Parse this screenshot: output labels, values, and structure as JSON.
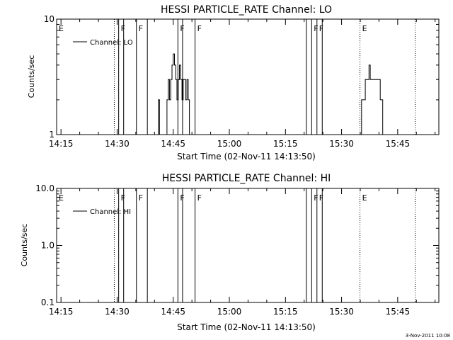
{
  "colors": {
    "foreground": "#000000",
    "background": "#ffffff"
  },
  "footer": {
    "timestamp": "3-Nov-2011 10:08"
  },
  "chart_data": [
    {
      "type": "line",
      "title": "HESSI PARTICLE_RATE Channel: LO",
      "xlabel": "Start Time (02-Nov-11 14:13:50)",
      "ylabel": "Counts/sec",
      "yscale": "log",
      "xlim": [
        "14:13:50",
        "15:56:00"
      ],
      "ylim": [
        1,
        10
      ],
      "xticks": [
        "14:15",
        "14:30",
        "14:45",
        "15:00",
        "15:15",
        "15:30",
        "15:45"
      ],
      "yticks": [
        "1",
        "10"
      ],
      "legend": {
        "label": "Channel: LO",
        "placement": "top-left"
      },
      "series": [
        {
          "name": "Channel: LO",
          "x": [
            "14:40:40",
            "14:41:00",
            "14:41:20",
            "14:41:40",
            "14:42:00",
            "14:42:30",
            "14:43:00",
            "14:43:20",
            "14:43:40",
            "14:44:00",
            "14:44:20",
            "14:44:40",
            "14:45:00",
            "14:45:20",
            "14:45:40",
            "14:46:00",
            "14:46:20",
            "14:46:40",
            "14:47:00",
            "14:47:20",
            "14:47:40",
            "14:48:00",
            "14:48:20",
            "14:48:40",
            "14:49:00",
            "14:49:20",
            "14:49:40",
            "14:50:00",
            "14:50:20",
            "15:35:10",
            "15:35:20",
            "15:35:40",
            "15:36:00",
            "15:36:20",
            "15:36:40",
            "15:37:00",
            "15:37:20",
            "15:37:40",
            "15:38:00",
            "15:38:20",
            "15:38:40",
            "15:39:00",
            "15:39:20",
            "15:39:40",
            "15:40:00",
            "15:40:20",
            "15:40:40",
            "15:41:00",
            "15:41:20"
          ],
          "y": [
            1,
            2,
            1,
            1,
            1,
            1,
            1,
            2,
            3,
            2,
            3,
            4,
            5,
            4,
            3,
            2,
            3,
            4,
            3,
            2,
            3,
            3,
            2,
            3,
            2,
            1,
            1,
            1,
            1,
            1,
            2,
            2,
            2,
            3,
            3,
            3,
            4,
            3,
            3,
            3,
            3,
            3,
            3,
            3,
            3,
            2,
            2,
            1,
            1
          ]
        }
      ],
      "annotations": [
        {
          "label": "E",
          "time": "14:13:50",
          "style": "dotted"
        },
        {
          "label": "",
          "time": "14:29:15",
          "style": "dotted"
        },
        {
          "label": "F",
          "time": "14:30:25",
          "style": "solid"
        },
        {
          "label": "",
          "time": "14:31:45",
          "style": "solid"
        },
        {
          "label": "F",
          "time": "14:35:10",
          "style": "solid"
        },
        {
          "label": "",
          "time": "14:38:05",
          "style": "solid"
        },
        {
          "label": "F",
          "time": "14:46:15",
          "style": "solid"
        },
        {
          "label": "",
          "time": "14:47:30",
          "style": "solid"
        },
        {
          "label": "F",
          "time": "14:50:50",
          "style": "solid"
        },
        {
          "label": "",
          "time": "15:20:35",
          "style": "solid"
        },
        {
          "label": "F",
          "time": "15:22:00",
          "style": "solid"
        },
        {
          "label": "F",
          "time": "15:23:25",
          "style": "solid"
        },
        {
          "label": "",
          "time": "15:24:50",
          "style": "solid"
        },
        {
          "label": "E",
          "time": "15:34:55",
          "style": "dotted"
        },
        {
          "label": "",
          "time": "15:49:40",
          "style": "dotted"
        }
      ]
    },
    {
      "type": "line",
      "title": "HESSI PARTICLE_RATE Channel: HI",
      "xlabel": "Start Time (02-Nov-11 14:13:50)",
      "ylabel": "Counts/sec",
      "yscale": "log",
      "xlim": [
        "14:13:50",
        "15:56:00"
      ],
      "ylim": [
        0.1,
        10
      ],
      "xticks": [
        "14:15",
        "14:30",
        "14:45",
        "15:00",
        "15:15",
        "15:30",
        "15:45"
      ],
      "yticks": [
        "0.1",
        "1.0",
        "10.0"
      ],
      "legend": {
        "label": "Channel: HI",
        "placement": "top-left"
      },
      "series": [
        {
          "name": "Channel: HI",
          "x": [],
          "y": []
        }
      ],
      "annotations": [
        {
          "label": "E",
          "time": "14:13:50",
          "style": "dotted"
        },
        {
          "label": "",
          "time": "14:29:15",
          "style": "dotted"
        },
        {
          "label": "F",
          "time": "14:30:25",
          "style": "solid"
        },
        {
          "label": "",
          "time": "14:31:45",
          "style": "solid"
        },
        {
          "label": "F",
          "time": "14:35:10",
          "style": "solid"
        },
        {
          "label": "",
          "time": "14:38:05",
          "style": "solid"
        },
        {
          "label": "F",
          "time": "14:46:15",
          "style": "solid"
        },
        {
          "label": "",
          "time": "14:47:30",
          "style": "solid"
        },
        {
          "label": "F",
          "time": "14:50:50",
          "style": "solid"
        },
        {
          "label": "",
          "time": "15:20:35",
          "style": "solid"
        },
        {
          "label": "F",
          "time": "15:22:00",
          "style": "solid"
        },
        {
          "label": "F",
          "time": "15:23:25",
          "style": "solid"
        },
        {
          "label": "",
          "time": "15:24:50",
          "style": "solid"
        },
        {
          "label": "E",
          "time": "15:34:55",
          "style": "dotted"
        },
        {
          "label": "",
          "time": "15:49:40",
          "style": "dotted"
        }
      ]
    }
  ]
}
